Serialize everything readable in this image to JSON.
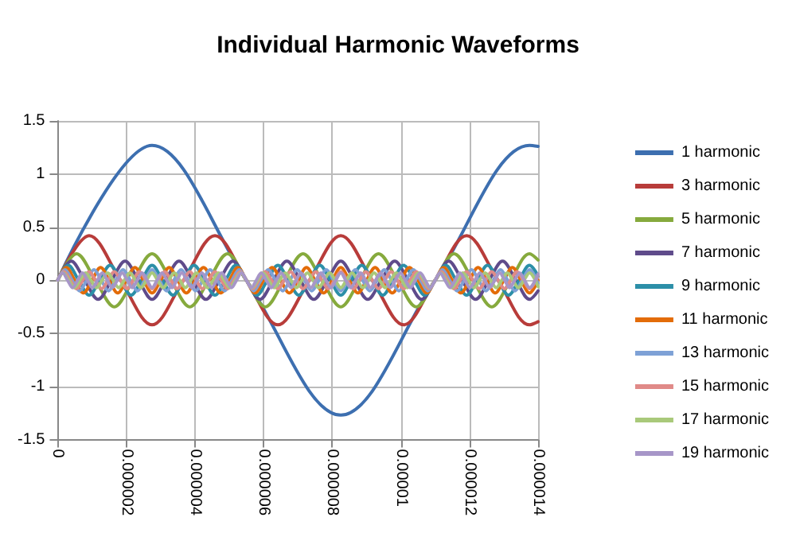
{
  "chart_data": {
    "type": "line",
    "title": "Individual Harmonic Waveforms",
    "xlim": [
      0,
      1.4e-05
    ],
    "xticks": [
      0,
      {
        "value": 2e-06,
        "label": "0.000002"
      },
      {
        "value": 4e-06,
        "label": "0.000004"
      },
      {
        "value": 6e-06,
        "label": "0.000006"
      },
      {
        "value": 8e-06,
        "label": "0.000008"
      },
      {
        "value": 1e-05,
        "label": "0.00001"
      },
      {
        "value": 1.2e-05,
        "label": "0.000012"
      },
      {
        "value": 1.4e-05,
        "label": "0.000014"
      }
    ],
    "ylim": [
      -1.5,
      1.5
    ],
    "yticks": [
      -1.5,
      -1,
      -0.5,
      0,
      0.5,
      1,
      1.5
    ],
    "grid": true,
    "legend": "right",
    "marker": "none",
    "line_style": "solid",
    "series": [
      {
        "name": "1 harmonic",
        "color": "#3d6fb0",
        "x": [
          0,
          2.75e-06,
          5.5e-06,
          8.25e-06,
          1.1e-05,
          1.375e-05,
          1.4e-05
        ],
        "values": [
          0,
          1.27,
          0,
          -1.27,
          0,
          1.27,
          1.26
        ]
      },
      {
        "name": "3 harmonic",
        "color": "#b83c3a",
        "x": [
          0,
          9.17e-07,
          1.833e-06,
          2.75e-06,
          3.667e-06,
          4.583e-06,
          5.5e-06,
          6.417e-06,
          7.333e-06,
          8.25e-06,
          9.167e-06,
          1.0083e-05,
          1.1e-05,
          1.1917e-05,
          1.2833e-05,
          1.375e-05,
          1.4e-05
        ],
        "values": [
          0,
          0.42,
          0,
          -0.42,
          0,
          0.42,
          0,
          -0.42,
          0,
          0.42,
          0,
          -0.42,
          0,
          0.42,
          0,
          -0.42,
          -0.39
        ]
      },
      {
        "name": "5 harmonic",
        "color": "#86aa3d",
        "x": [
          0,
          5.5e-07,
          1.1e-06,
          1.65e-06,
          2.2e-06,
          2.75e-06,
          3.3e-06,
          3.85e-06,
          4.4e-06,
          4.95e-06,
          5.5e-06,
          6.05e-06,
          6.6e-06,
          7.15e-06,
          7.7e-06,
          8.25e-06,
          8.8e-06,
          9.35e-06,
          9.9e-06,
          1.045e-05,
          1.1e-05,
          1.155e-05,
          1.21e-05,
          1.265e-05,
          1.32e-05,
          1.375e-05,
          1.4e-05
        ],
        "values": [
          0,
          0.25,
          0,
          -0.25,
          0,
          0.25,
          0,
          -0.25,
          0,
          0.25,
          0,
          -0.25,
          0,
          0.25,
          0,
          -0.25,
          0,
          0.25,
          0,
          -0.25,
          0,
          0.25,
          0,
          -0.25,
          0,
          0.25,
          0.19
        ]
      },
      {
        "name": "7 harmonic",
        "color": "#5f4b8b",
        "x": [
          0,
          3.93e-07,
          7.86e-07,
          1.179e-06,
          1.571e-06,
          1.964e-06,
          2.357e-06,
          2.75e-06,
          3.143e-06,
          3.536e-06,
          3.929e-06,
          4.321e-06,
          4.714e-06,
          5.107e-06,
          5.5e-06,
          5.893e-06,
          6.286e-06,
          6.679e-06,
          7.071e-06,
          7.464e-06,
          7.857e-06,
          8.25e-06,
          8.643e-06,
          9.036e-06,
          9.429e-06,
          9.821e-06,
          1.0214e-05,
          1.0607e-05,
          1.1e-05,
          1.1393e-05,
          1.1786e-05,
          1.2179e-05,
          1.2571e-05,
          1.2964e-05,
          1.3357e-05,
          1.375e-05,
          1.4e-05
        ],
        "values": [
          0,
          0.18,
          0,
          -0.18,
          0,
          0.18,
          0,
          -0.18,
          0,
          0.18,
          0,
          -0.18,
          0,
          0.18,
          0,
          -0.18,
          0,
          0.18,
          0,
          -0.18,
          0,
          0.18,
          0,
          -0.18,
          0,
          0.18,
          0,
          -0.18,
          0,
          0.18,
          0,
          -0.18,
          0,
          0.18,
          0,
          -0.18,
          -0.1
        ]
      },
      {
        "name": "9 harmonic",
        "color": "#2c8fa8",
        "x": [
          0,
          3.06e-07,
          6.11e-07,
          9.17e-07,
          1.222e-06,
          1.528e-06,
          1.833e-06,
          2.139e-06,
          2.444e-06,
          2.75e-06,
          3.056e-06,
          3.361e-06,
          3.667e-06,
          3.972e-06,
          4.278e-06,
          4.583e-06,
          4.889e-06,
          5.194e-06,
          5.5e-06,
          5.806e-06,
          6.111e-06,
          6.417e-06,
          6.722e-06,
          7.028e-06,
          7.333e-06,
          7.639e-06,
          7.944e-06,
          8.25e-06,
          8.556e-06,
          8.861e-06,
          9.167e-06,
          9.472e-06,
          9.778e-06,
          1.0083e-05,
          1.0389e-05,
          1.0694e-05,
          1.1e-05,
          1.1306e-05,
          1.1611e-05,
          1.1917e-05,
          1.2222e-05,
          1.2528e-05,
          1.2833e-05,
          1.3139e-05,
          1.3444e-05,
          1.375e-05,
          1.4e-05
        ],
        "values": [
          0,
          0.14,
          0,
          -0.14,
          0,
          0.14,
          0,
          -0.14,
          0,
          0.14,
          0,
          -0.14,
          0,
          0.14,
          0,
          -0.14,
          0,
          0.14,
          0,
          -0.14,
          0,
          0.14,
          0,
          -0.14,
          0,
          0.14,
          0,
          -0.14,
          0,
          0.14,
          0,
          -0.14,
          0,
          0.14,
          0,
          -0.14,
          0,
          0.14,
          0,
          -0.14,
          0,
          0.14,
          0,
          -0.14,
          0,
          0.14,
          0.04
        ]
      },
      {
        "name": "11 harmonic",
        "color": "#e36c09",
        "x": [
          0,
          2.5e-07,
          5e-07,
          7.5e-07,
          1e-06,
          1.25e-06,
          1.5e-06,
          1.75e-06,
          2e-06,
          2.25e-06,
          2.5e-06,
          2.75e-06,
          3e-06,
          3.25e-06,
          3.5e-06,
          3.75e-06,
          4e-06,
          4.25e-06,
          4.5e-06,
          4.75e-06,
          5e-06,
          5.25e-06,
          5.5e-06,
          5.75e-06,
          6e-06,
          6.25e-06,
          6.5e-06,
          6.75e-06,
          7e-06,
          7.25e-06,
          7.5e-06,
          7.75e-06,
          8e-06,
          8.25e-06,
          8.5e-06,
          8.75e-06,
          9e-06,
          9.25e-06,
          9.5e-06,
          9.75e-06,
          1e-05,
          1.025e-05,
          1.05e-05,
          1.075e-05,
          1.1e-05,
          1.125e-05,
          1.15e-05,
          1.175e-05,
          1.2e-05,
          1.225e-05,
          1.25e-05,
          1.275e-05,
          1.3e-05,
          1.325e-05,
          1.35e-05,
          1.375e-05,
          1.4e-05
        ],
        "values": [
          0,
          0.12,
          0,
          -0.12,
          0,
          0.12,
          0,
          -0.12,
          0,
          0.12,
          0,
          -0.12,
          0,
          0.12,
          0,
          -0.12,
          0,
          0.12,
          0,
          -0.12,
          0,
          0.12,
          0,
          -0.12,
          0,
          0.12,
          0,
          -0.12,
          0,
          0.12,
          0,
          -0.12,
          0,
          0.12,
          0,
          -0.12,
          0,
          0.12,
          0,
          -0.12,
          0,
          0.12,
          0,
          -0.12,
          0,
          0.12,
          0,
          -0.12,
          0,
          0.12,
          0,
          -0.12,
          0,
          0.12,
          0,
          -0.12,
          0
        ]
      },
      {
        "name": "13 harmonic",
        "color": "#7ea1d6",
        "x": [
          0,
          2.12e-07,
          4.23e-07,
          6.35e-07,
          8.46e-07,
          1.058e-06,
          1.269e-06,
          1.481e-06,
          1.692e-06,
          1.904e-06,
          2.115e-06,
          2.327e-06,
          2.538e-06,
          2.75e-06,
          2.962e-06,
          3.173e-06,
          3.385e-06,
          3.596e-06,
          3.808e-06,
          4.019e-06,
          4.231e-06,
          4.442e-06,
          4.654e-06,
          4.865e-06,
          5.077e-06,
          5.288e-06,
          5.5e-06,
          5.712e-06,
          5.923e-06,
          6.135e-06,
          6.346e-06,
          6.558e-06,
          6.769e-06,
          6.981e-06,
          7.192e-06,
          7.404e-06,
          7.615e-06,
          7.827e-06,
          8.038e-06,
          8.25e-06,
          8.462e-06,
          8.673e-06,
          8.885e-06,
          9.096e-06,
          9.308e-06,
          9.519e-06,
          9.731e-06,
          9.942e-06,
          1.0154e-05,
          1.0365e-05,
          1.0577e-05,
          1.0788e-05,
          1.1e-05,
          1.1212e-05,
          1.1423e-05,
          1.1635e-05,
          1.1846e-05,
          1.2058e-05,
          1.2269e-05,
          1.2481e-05,
          1.2692e-05,
          1.2904e-05,
          1.3115e-05,
          1.3327e-05,
          1.3538e-05,
          1.375e-05,
          1.4e-05
        ],
        "values": [
          0,
          0.1,
          0,
          -0.1,
          0,
          0.1,
          0,
          -0.1,
          0,
          0.1,
          0,
          -0.1,
          0,
          0.1,
          0,
          -0.1,
          0,
          0.1,
          0,
          -0.1,
          0,
          0.1,
          0,
          -0.1,
          0,
          0.1,
          0,
          -0.1,
          0,
          0.1,
          0,
          -0.1,
          0,
          0.1,
          0,
          -0.1,
          0,
          0.1,
          0,
          -0.1,
          0,
          0.1,
          0,
          -0.1,
          0,
          0.1,
          0,
          -0.1,
          0,
          0.1,
          0,
          -0.1,
          0,
          0.1,
          0,
          -0.1,
          0,
          0.1,
          0,
          -0.1,
          0,
          0.1,
          0,
          -0.1,
          0,
          0.1,
          -0.03
        ]
      },
      {
        "name": "15 harmonic",
        "color": "#e08a88",
        "x": [
          0,
          1.83e-07,
          3.67e-07,
          5.5e-07,
          7.33e-07,
          9.17e-07,
          1.1e-06,
          1.283e-06,
          1.467e-06,
          1.65e-06,
          1.833e-06,
          2.017e-06,
          2.2e-06,
          2.383e-06,
          2.567e-06,
          2.75e-06,
          2.933e-06,
          3.117e-06,
          3.3e-06,
          3.483e-06,
          3.667e-06,
          3.85e-06,
          4.033e-06,
          4.217e-06,
          4.4e-06,
          4.583e-06,
          4.767e-06,
          4.95e-06,
          5.133e-06,
          5.317e-06,
          5.5e-06,
          5.683e-06,
          5.867e-06,
          6.05e-06,
          6.233e-06,
          6.417e-06,
          6.6e-06,
          6.783e-06,
          6.967e-06,
          7.15e-06,
          7.333e-06,
          7.517e-06,
          7.7e-06,
          7.883e-06,
          8.067e-06,
          8.25e-06,
          8.433e-06,
          8.617e-06,
          8.8e-06,
          8.983e-06,
          9.167e-06,
          9.35e-06,
          9.533e-06,
          9.717e-06,
          9.9e-06,
          1.0083e-05,
          1.0267e-05,
          1.045e-05,
          1.0633e-05,
          1.0817e-05,
          1.1e-05,
          1.1183e-05,
          1.1367e-05,
          1.155e-05,
          1.1733e-05,
          1.1917e-05,
          1.21e-05,
          1.2283e-05,
          1.2467e-05,
          1.265e-05,
          1.2833e-05,
          1.3017e-05,
          1.32e-05,
          1.3383e-05,
          1.3567e-05,
          1.375e-05,
          1.4e-05
        ],
        "values": [
          0,
          0.08,
          0,
          -0.08,
          0,
          0.08,
          0,
          -0.08,
          0,
          0.08,
          0,
          -0.08,
          0,
          0.08,
          0,
          -0.08,
          0,
          0.08,
          0,
          -0.08,
          0,
          0.08,
          0,
          -0.08,
          0,
          0.08,
          0,
          -0.08,
          0,
          0.08,
          0,
          -0.08,
          0,
          0.08,
          0,
          -0.08,
          0,
          0.08,
          0,
          -0.08,
          0,
          0.08,
          0,
          -0.08,
          0,
          0.08,
          0,
          -0.08,
          0,
          0.08,
          0,
          -0.08,
          0,
          0.08,
          0,
          -0.08,
          0,
          0.08,
          0,
          -0.08,
          0,
          0.08,
          0,
          -0.08,
          0,
          0.08,
          0,
          -0.08,
          0,
          0.08,
          0,
          -0.08,
          0,
          0.08,
          0,
          -0.08,
          0.05
        ]
      },
      {
        "name": "17 harmonic",
        "color": "#a9c97a",
        "x": [
          0,
          1.62e-07,
          3.24e-07,
          4.85e-07,
          6.47e-07,
          8.09e-07,
          9.71e-07,
          1.132e-06,
          1.294e-06,
          1.456e-06,
          1.618e-06,
          1.779e-06,
          1.941e-06,
          2.103e-06,
          2.265e-06,
          2.426e-06,
          2.588e-06,
          2.75e-06,
          2.912e-06,
          3.074e-06,
          3.235e-06,
          3.397e-06,
          3.559e-06,
          3.721e-06,
          3.882e-06,
          4.044e-06,
          4.206e-06,
          4.368e-06,
          4.529e-06,
          4.691e-06,
          4.853e-06,
          5.015e-06,
          5.176e-06,
          5.338e-06,
          5.5e-06,
          5.662e-06,
          5.824e-06,
          5.985e-06,
          6.147e-06,
          6.309e-06,
          6.471e-06,
          6.632e-06,
          6.794e-06,
          6.956e-06,
          7.118e-06,
          7.279e-06,
          7.441e-06,
          7.603e-06,
          7.765e-06,
          7.926e-06,
          8.088e-06,
          8.25e-06,
          8.412e-06,
          8.574e-06,
          8.735e-06,
          8.897e-06,
          9.059e-06,
          9.221e-06,
          9.382e-06,
          9.544e-06,
          9.706e-06,
          9.868e-06,
          1.0029e-05,
          1.0191e-05,
          1.0353e-05,
          1.0515e-05,
          1.0676e-05,
          1.0838e-05,
          1.1e-05,
          1.1162e-05,
          1.1324e-05,
          1.1485e-05,
          1.1647e-05,
          1.1809e-05,
          1.1971e-05,
          1.2132e-05,
          1.2294e-05,
          1.2456e-05,
          1.2618e-05,
          1.2779e-05,
          1.2941e-05,
          1.3103e-05,
          1.3265e-05,
          1.3426e-05,
          1.3588e-05,
          1.375e-05,
          1.4e-05
        ],
        "values": [
          0,
          0.07,
          0,
          -0.07,
          0,
          0.07,
          0,
          -0.07,
          0,
          0.07,
          0,
          -0.07,
          0,
          0.07,
          0,
          -0.07,
          0,
          0.07,
          0,
          -0.07,
          0,
          0.07,
          0,
          -0.07,
          0,
          0.07,
          0,
          -0.07,
          0,
          0.07,
          0,
          -0.07,
          0,
          0.07,
          0,
          -0.07,
          0,
          0.07,
          0,
          -0.07,
          0,
          0.07,
          0,
          -0.07,
          0,
          0.07,
          0,
          -0.07,
          0,
          0.07,
          0,
          -0.07,
          0,
          0.07,
          0,
          -0.07,
          0,
          0.07,
          0,
          -0.07,
          0,
          0.07,
          0,
          -0.07,
          0,
          0.07,
          0,
          -0.07,
          0,
          0.07,
          0,
          -0.07,
          0,
          0.07,
          0,
          -0.07,
          0,
          0.07,
          0,
          -0.07,
          0,
          0.07,
          0,
          -0.07,
          0,
          0.07,
          -0.06
        ]
      },
      {
        "name": "19 harmonic",
        "color": "#a796c8",
        "x": [
          0,
          1.45e-07,
          2.89e-07,
          4.34e-07,
          5.79e-07,
          7.24e-07,
          8.68e-07,
          1.013e-06,
          1.158e-06,
          1.303e-06,
          1.447e-06,
          1.592e-06,
          1.737e-06,
          1.882e-06,
          2.026e-06,
          2.171e-06,
          2.316e-06,
          2.461e-06,
          2.605e-06,
          2.75e-06,
          2.895e-06,
          3.039e-06,
          3.184e-06,
          3.329e-06,
          3.474e-06,
          3.618e-06,
          3.763e-06,
          3.908e-06,
          4.053e-06,
          4.197e-06,
          4.342e-06,
          4.487e-06,
          4.632e-06,
          4.776e-06,
          4.921e-06,
          5.066e-06,
          5.211e-06,
          5.355e-06,
          5.5e-06,
          5.645e-06,
          5.789e-06,
          5.934e-06,
          6.079e-06,
          6.224e-06,
          6.368e-06,
          6.513e-06,
          6.658e-06,
          6.803e-06,
          6.947e-06,
          7.092e-06,
          7.237e-06,
          7.382e-06,
          7.526e-06,
          7.671e-06,
          7.816e-06,
          7.961e-06,
          8.105e-06,
          8.25e-06,
          8.395e-06,
          8.539e-06,
          8.684e-06,
          8.829e-06,
          8.974e-06,
          9.118e-06,
          9.263e-06,
          9.408e-06,
          9.553e-06,
          9.697e-06,
          9.842e-06,
          9.987e-06,
          1.0132e-05,
          1.0276e-05,
          1.0421e-05,
          1.0566e-05,
          1.0711e-05,
          1.0855e-05,
          1.1e-05,
          1.1145e-05,
          1.1289e-05,
          1.1434e-05,
          1.1579e-05,
          1.1724e-05,
          1.1868e-05,
          1.2013e-05,
          1.2158e-05,
          1.2303e-05,
          1.2447e-05,
          1.2592e-05,
          1.2737e-05,
          1.2882e-05,
          1.3026e-05,
          1.3171e-05,
          1.3316e-05,
          1.3461e-05,
          1.3605e-05,
          1.375e-05,
          1.4e-05
        ],
        "values": [
          0,
          0.07,
          0,
          -0.07,
          0,
          0.07,
          0,
          -0.07,
          0,
          0.07,
          0,
          -0.07,
          0,
          0.07,
          0,
          -0.07,
          0,
          0.07,
          0,
          -0.07,
          0,
          0.07,
          0,
          -0.07,
          0,
          0.07,
          0,
          -0.07,
          0,
          0.07,
          0,
          -0.07,
          0,
          0.07,
          0,
          -0.07,
          0,
          0.07,
          0,
          -0.07,
          0,
          0.07,
          0,
          -0.07,
          0,
          0.07,
          0,
          -0.07,
          0,
          0.07,
          0,
          -0.07,
          0,
          0.07,
          0,
          -0.07,
          0,
          0.07,
          0,
          -0.07,
          0,
          0.07,
          0,
          -0.07,
          0,
          0.07,
          0,
          -0.07,
          0,
          0.07,
          0,
          -0.07,
          0,
          0.07,
          0,
          -0.07,
          0,
          0.07,
          0,
          -0.07,
          0,
          0.07,
          0,
          -0.07,
          0,
          0.07,
          0,
          -0.07,
          0,
          0.07,
          0,
          -0.07,
          0,
          0.07,
          0,
          -0.07,
          0.06
        ]
      }
    ]
  }
}
